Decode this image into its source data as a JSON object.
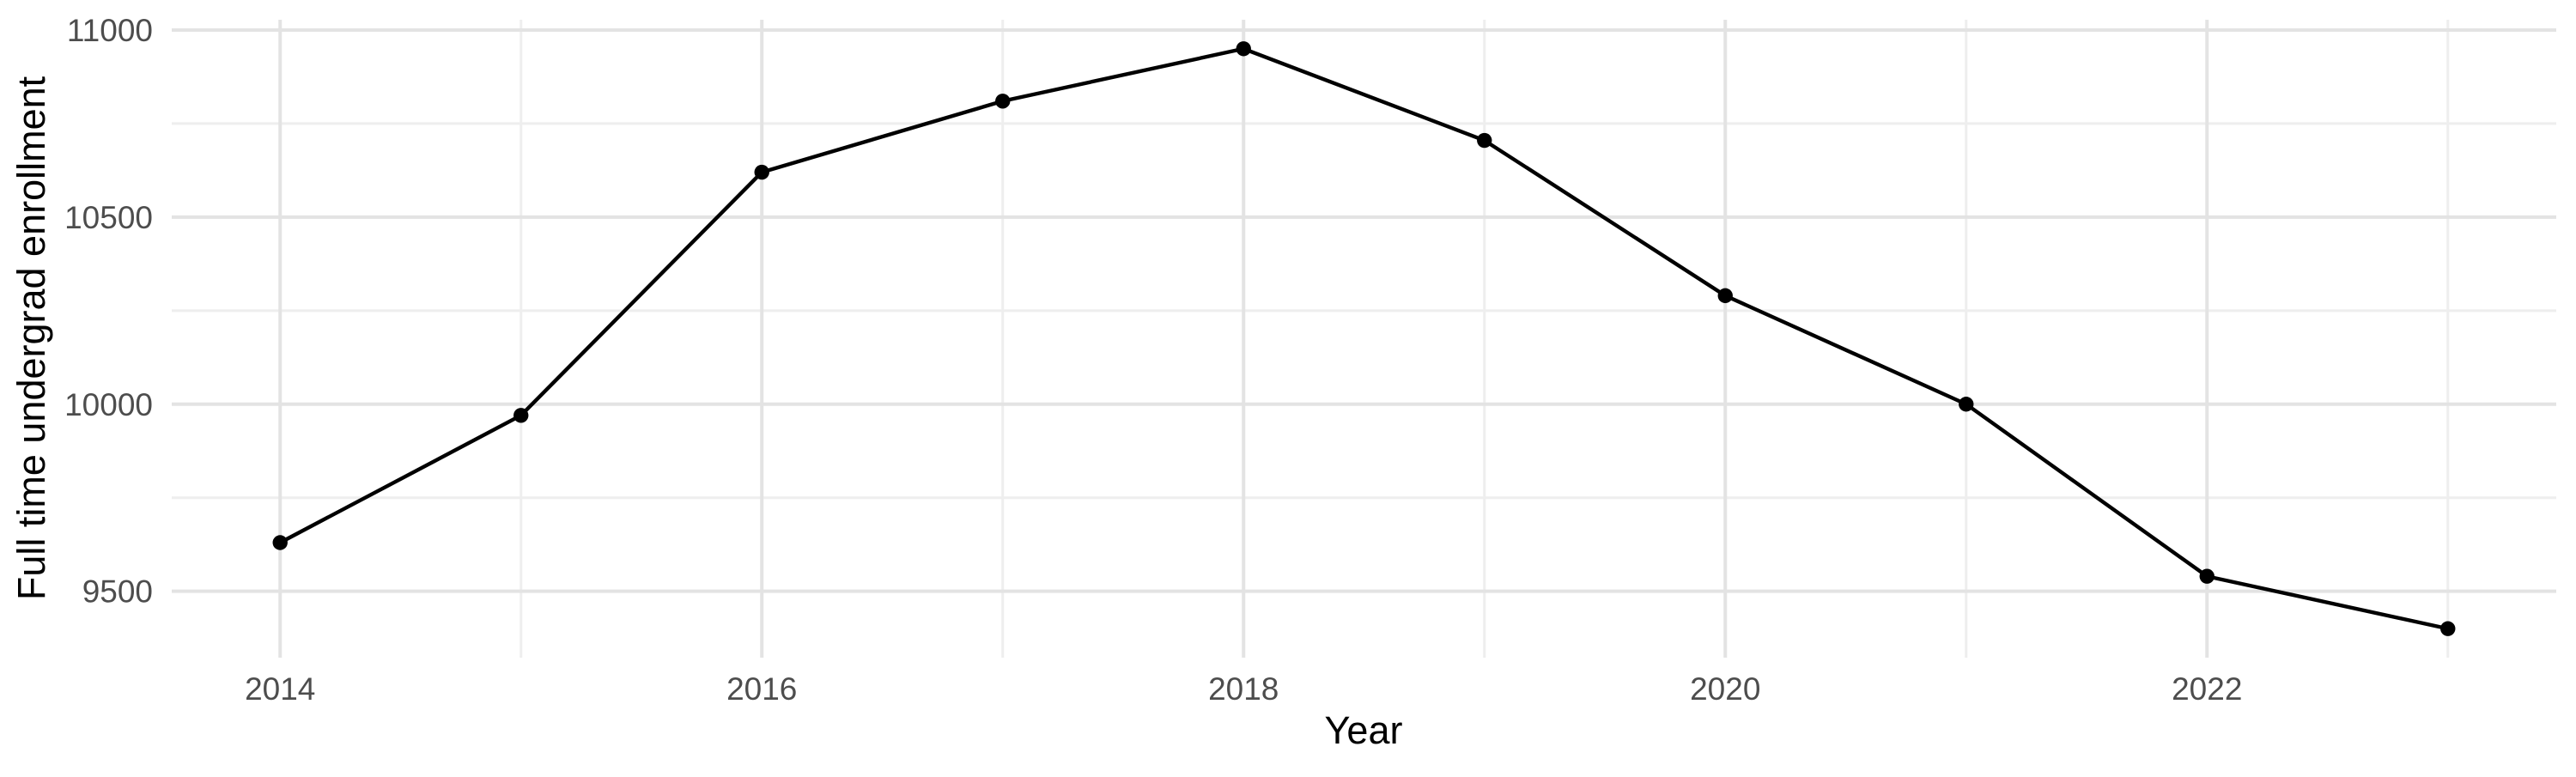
{
  "chart_data": {
    "type": "line",
    "title": "",
    "xlabel": "Year",
    "ylabel": "Full time undergrad enrollment",
    "x": [
      2014,
      2015,
      2016,
      2017,
      2018,
      2019,
      2020,
      2021,
      2022,
      2023
    ],
    "series": [
      {
        "name": "Full time undergrad enrollment",
        "values": [
          9630,
          9970,
          10620,
          10810,
          10950,
          10705,
          10290,
          10000,
          9540,
          9400
        ]
      }
    ],
    "x_ticks_major": [
      2014,
      2016,
      2018,
      2020,
      2022
    ],
    "x_ticks_minor": [
      2015,
      2017,
      2019,
      2021,
      2023
    ],
    "y_ticks_major": [
      9500,
      10000,
      10500,
      11000
    ],
    "y_ticks_minor": [
      9750,
      10250,
      10750
    ],
    "x_domain": [
      2013.55,
      2023.45
    ],
    "y_domain": [
      9322.5,
      11027.5
    ],
    "grid": "major+minor",
    "legend": "none",
    "styles": {
      "line_color": "#000000",
      "point_color": "#000000",
      "grid_major_color": "#e3e3e3",
      "grid_minor_color": "#eeeeee",
      "tick_label_color": "#4d4d4d",
      "axis_title_color": "#000000",
      "background_color": "#ffffff"
    }
  }
}
